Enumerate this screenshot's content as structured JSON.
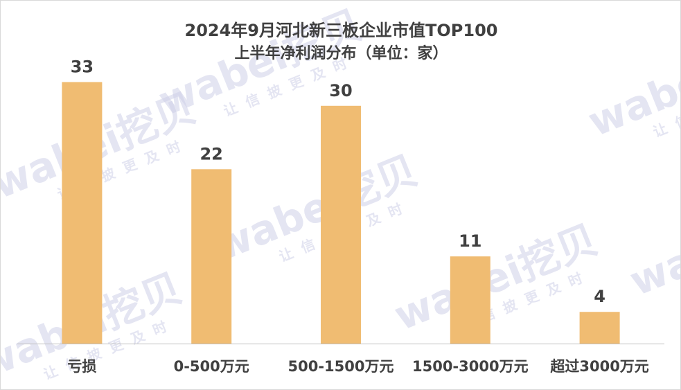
{
  "title_line1": "2024年9月河北新三板企业市值TOP100",
  "title_line2": "上半年净利润分布（单位：家）",
  "watermark": {
    "brand": "wabei挖贝",
    "slogan": "让信披更及时"
  },
  "colors": {
    "bar": "#F0BC72",
    "axis": "#bfbfbf",
    "text": "#404040"
  },
  "chart_data": {
    "type": "bar",
    "title": "2024年9月河北新三板企业市值TOP100 上半年净利润分布（单位：家）",
    "categories": [
      "亏损",
      "0-500万元",
      "500-1500万元",
      "1500-3000万元",
      "超过3000万元"
    ],
    "values": [
      33,
      22,
      30,
      11,
      4
    ],
    "unit": "家",
    "ylim": [
      0,
      34
    ],
    "grid": false,
    "legend": "none",
    "data_labels": true
  }
}
